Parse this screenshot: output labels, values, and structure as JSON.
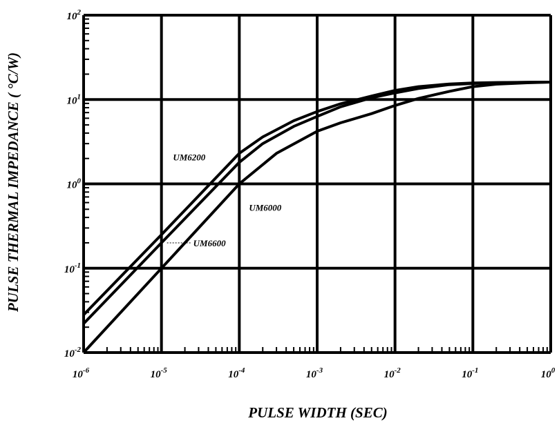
{
  "chart_data": {
    "type": "line",
    "xlabel": "PULSE WIDTH (SEC)",
    "ylabel": "PULSE THERMAL IMPEDANCE ( °C/W)",
    "x_scale": "log",
    "y_scale": "log",
    "xlim": [
      1e-06,
      1
    ],
    "ylim": [
      0.01,
      100
    ],
    "grid": true,
    "x_ticks": [
      {
        "value": 1e-06,
        "base": "10",
        "exp": "-6"
      },
      {
        "value": 1e-05,
        "base": "10",
        "exp": "-5"
      },
      {
        "value": 0.0001,
        "base": "10",
        "exp": "-4"
      },
      {
        "value": 0.001,
        "base": "10",
        "exp": "-3"
      },
      {
        "value": 0.01,
        "base": "10",
        "exp": "-2"
      },
      {
        "value": 0.1,
        "base": "10",
        "exp": "-1"
      },
      {
        "value": 1,
        "base": "10",
        "exp": "0"
      }
    ],
    "y_ticks": [
      {
        "value": 0.01,
        "base": "10",
        "exp": "-2"
      },
      {
        "value": 0.1,
        "base": "10",
        "exp": "-1"
      },
      {
        "value": 1,
        "base": "10",
        "exp": "0"
      },
      {
        "value": 10,
        "base": "10",
        "exp": "1"
      },
      {
        "value": 100,
        "base": "10",
        "exp": "2"
      }
    ],
    "series": [
      {
        "name": "UM6200",
        "x": [
          1e-06,
          1e-05,
          0.0001,
          0.0002,
          0.0005,
          0.001,
          0.002,
          0.005,
          0.01,
          0.02,
          0.05,
          0.1,
          0.2,
          0.5,
          1
        ],
        "y": [
          0.028,
          0.25,
          2.3,
          3.6,
          5.6,
          7.2,
          8.9,
          11,
          12.8,
          14.2,
          15.3,
          15.7,
          15.9,
          16.0,
          16.1
        ]
      },
      {
        "name": "UM6600",
        "x": [
          1e-06,
          1e-05,
          0.0001,
          0.0002,
          0.0005,
          0.001,
          0.002,
          0.005,
          0.01,
          0.02,
          0.05,
          0.1,
          0.2,
          0.5,
          1
        ],
        "y": [
          0.022,
          0.2,
          1.8,
          3.0,
          4.8,
          6.3,
          8.2,
          10.5,
          12.0,
          13.5,
          15.0,
          15.5,
          15.8,
          16.0,
          16.1
        ]
      },
      {
        "name": "UM6000",
        "x": [
          1e-06,
          1e-05,
          0.0001,
          0.0003,
          0.001,
          0.002,
          0.005,
          0.01,
          0.02,
          0.05,
          0.1,
          0.2,
          0.5,
          1
        ],
        "y": [
          0.01,
          0.1,
          1.0,
          2.3,
          4.2,
          5.3,
          6.8,
          8.5,
          10.3,
          12.5,
          14.2,
          15.2,
          15.8,
          16.1
        ]
      }
    ],
    "annotations": [
      {
        "text": "UM6200",
        "series": "UM6200"
      },
      {
        "text": "UM6000",
        "series": "UM6000"
      },
      {
        "text": "UM6600",
        "series": "UM6600"
      }
    ]
  }
}
